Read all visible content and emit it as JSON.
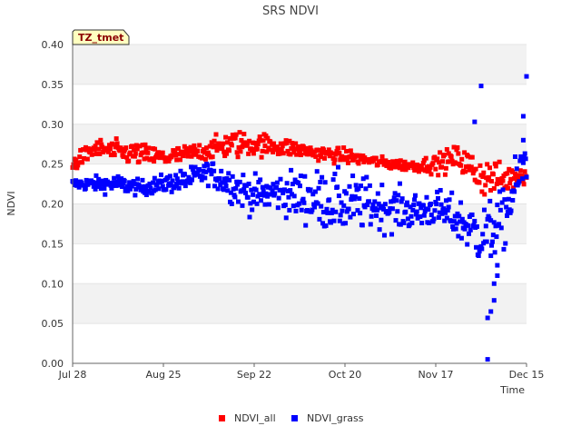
{
  "chart_data": {
    "type": "scatter",
    "title": "SRS NDVI",
    "xlabel": "Time",
    "ylabel": "NDVI",
    "annotation": "TZ_tmet",
    "x_ticks": [
      "Jul 28",
      "Aug 25",
      "Sep 22",
      "Oct 20",
      "Nov 17",
      "Dec 15"
    ],
    "x_range_days": [
      0,
      140
    ],
    "ylim": [
      0.0,
      0.4
    ],
    "y_ticks": [
      "0.00",
      "0.05",
      "0.10",
      "0.15",
      "0.20",
      "0.25",
      "0.30",
      "0.35",
      "0.40"
    ],
    "grid": "horizontal bands",
    "legend_position": "bottom-center",
    "series": [
      {
        "name": "NDVI_all",
        "color": "#ff0000",
        "marker": "square",
        "trend": [
          [
            0,
            0.25,
            0.02
          ],
          [
            7,
            0.27,
            0.025
          ],
          [
            14,
            0.265,
            0.03
          ],
          [
            21,
            0.262,
            0.03
          ],
          [
            28,
            0.258,
            0.025
          ],
          [
            35,
            0.262,
            0.025
          ],
          [
            42,
            0.268,
            0.025
          ],
          [
            49,
            0.275,
            0.04
          ],
          [
            56,
            0.275,
            0.03
          ],
          [
            63,
            0.273,
            0.03
          ],
          [
            70,
            0.268,
            0.02
          ],
          [
            77,
            0.263,
            0.02
          ],
          [
            84,
            0.26,
            0.02
          ],
          [
            91,
            0.255,
            0.015
          ],
          [
            98,
            0.25,
            0.015
          ],
          [
            105,
            0.248,
            0.015
          ],
          [
            112,
            0.25,
            0.025
          ],
          [
            119,
            0.258,
            0.035
          ],
          [
            126,
            0.235,
            0.055
          ],
          [
            133,
            0.23,
            0.04
          ],
          [
            140,
            0.24,
            0.03
          ]
        ],
        "count": 520
      },
      {
        "name": "NDVI_grass",
        "color": "#0000ff",
        "marker": "square",
        "trend": [
          [
            0,
            0.225,
            0.015
          ],
          [
            7,
            0.225,
            0.02
          ],
          [
            14,
            0.225,
            0.025
          ],
          [
            21,
            0.22,
            0.02
          ],
          [
            28,
            0.225,
            0.025
          ],
          [
            35,
            0.23,
            0.03
          ],
          [
            42,
            0.24,
            0.03
          ],
          [
            49,
            0.225,
            0.05
          ],
          [
            56,
            0.21,
            0.05
          ],
          [
            63,
            0.215,
            0.05
          ],
          [
            70,
            0.21,
            0.07
          ],
          [
            77,
            0.205,
            0.08
          ],
          [
            84,
            0.2,
            0.08
          ],
          [
            91,
            0.2,
            0.07
          ],
          [
            98,
            0.195,
            0.06
          ],
          [
            105,
            0.19,
            0.05
          ],
          [
            112,
            0.195,
            0.05
          ],
          [
            119,
            0.18,
            0.06
          ],
          [
            126,
            0.16,
            0.08
          ],
          [
            133,
            0.18,
            0.08
          ],
          [
            140,
            0.26,
            0.08
          ]
        ],
        "outliers": [
          [
            128,
            0.005
          ],
          [
            128,
            0.057
          ],
          [
            129,
            0.065
          ],
          [
            130,
            0.079
          ],
          [
            130,
            0.1
          ],
          [
            131,
            0.11
          ],
          [
            131,
            0.123
          ],
          [
            129,
            0.135
          ],
          [
            126,
            0.348
          ],
          [
            140,
            0.36
          ],
          [
            124,
            0.303
          ],
          [
            139,
            0.31
          ],
          [
            139,
            0.28
          ]
        ],
        "count": 560
      }
    ]
  }
}
